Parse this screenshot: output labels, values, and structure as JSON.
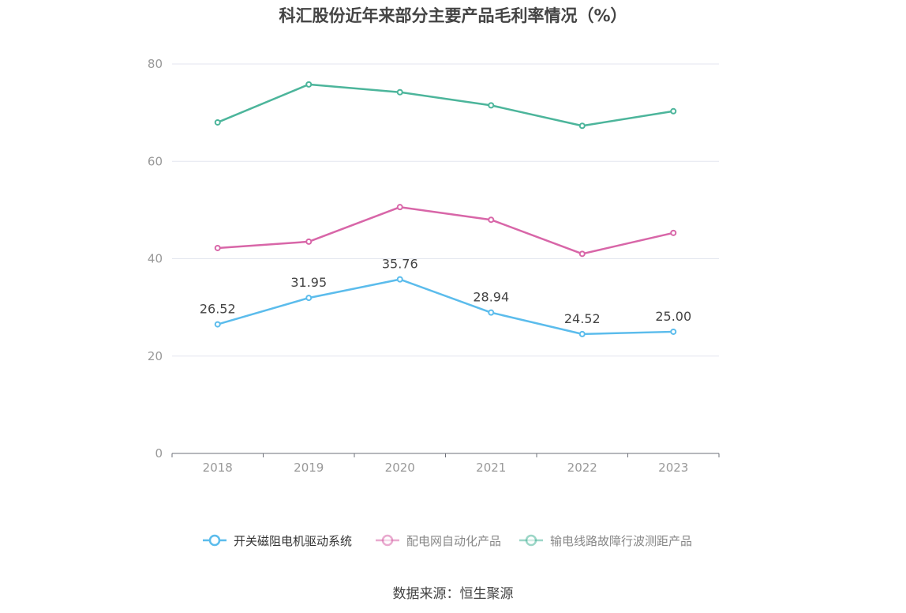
{
  "chart_data": {
    "type": "line",
    "title": "科汇股份近年来部分主要产品毛利率情况（%）",
    "x": [
      "2018",
      "2019",
      "2020",
      "2021",
      "2022",
      "2023"
    ],
    "ylim": [
      0,
      80
    ],
    "yticks": [
      0,
      20,
      40,
      60,
      80
    ],
    "grid": true,
    "legend_position": "bottom-center",
    "series": [
      {
        "name": "开关磁阻电机驱动系统",
        "color": "#5bbcec",
        "values": [
          26.52,
          31.95,
          35.76,
          28.94,
          24.52,
          25.0
        ],
        "labels": [
          "26.52",
          "31.95",
          "35.76",
          "28.94",
          "24.52",
          "25.00"
        ]
      },
      {
        "name": "配电网自动化产品",
        "color": "#d866a8",
        "values": [
          42.2,
          43.5,
          50.6,
          48.0,
          41.0,
          45.3
        ]
      },
      {
        "name": "输电线路故障行波测距产品",
        "color": "#4cb59b",
        "values": [
          68.0,
          75.8,
          74.2,
          71.5,
          67.3,
          70.3
        ]
      }
    ]
  },
  "source": "数据来源：恒生聚源"
}
